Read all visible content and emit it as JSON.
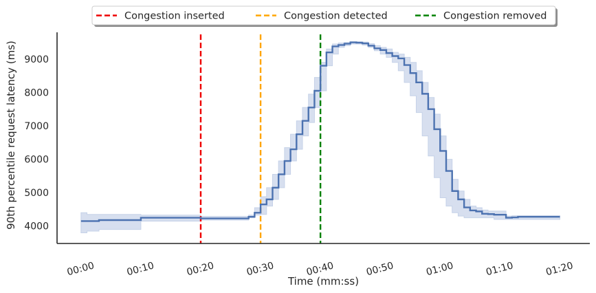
{
  "chart_data": {
    "type": "line",
    "xlabel": "Time (mm:ss)",
    "ylabel": "90th percentile request latency (ms)",
    "x_unit": "mm:ss",
    "x_ticks": [
      "00:00",
      "00:10",
      "00:20",
      "00:30",
      "00:40",
      "00:50",
      "01:00",
      "01:10",
      "01:20"
    ],
    "y_ticks": [
      4000,
      5000,
      6000,
      7000,
      8000,
      9000
    ],
    "xlim": [
      "-00:04",
      "01:25"
    ],
    "ylim": [
      3480,
      9800
    ],
    "grid": false,
    "legend_position": "top-center",
    "series": [
      {
        "color": "#4c72b0",
        "band_color": "#c6d2e8",
        "x": [
          "00:00",
          "00:01",
          "00:03",
          "00:10",
          "00:20",
          "00:28",
          "00:29",
          "00:30",
          "00:31",
          "00:32",
          "00:33",
          "00:34",
          "00:35",
          "00:36",
          "00:37",
          "00:38",
          "00:39",
          "00:40",
          "00:41",
          "00:42",
          "00:43",
          "00:44",
          "00:45",
          "00:46",
          "00:47",
          "00:48",
          "00:49",
          "00:50",
          "00:51",
          "00:52",
          "00:53",
          "00:54",
          "00:55",
          "00:56",
          "00:57",
          "00:58",
          "00:59",
          "01:00",
          "01:01",
          "01:02",
          "01:03",
          "01:04",
          "01:05",
          "01:06",
          "01:07",
          "01:08",
          "01:09",
          "01:10",
          "01:11",
          "01:12",
          "01:13",
          "01:20"
        ],
        "y": [
          4150,
          4150,
          4180,
          4250,
          4230,
          4280,
          4400,
          4650,
          4800,
          5150,
          5550,
          5950,
          6300,
          6750,
          7150,
          7550,
          8050,
          8800,
          9200,
          9380,
          9420,
          9460,
          9500,
          9490,
          9470,
          9400,
          9320,
          9270,
          9180,
          9090,
          9020,
          8820,
          8580,
          8300,
          7960,
          7500,
          6900,
          6250,
          5650,
          5050,
          4800,
          4560,
          4470,
          4440,
          4370,
          4360,
          4340,
          4340,
          4250,
          4260,
          4280,
          4280
        ],
        "lower": [
          3800,
          3850,
          3900,
          4150,
          4180,
          4250,
          4330,
          4350,
          4600,
          4800,
          5150,
          5550,
          5950,
          6300,
          6700,
          7100,
          7550,
          8050,
          8800,
          9150,
          9350,
          9400,
          9450,
          9450,
          9420,
          9350,
          9250,
          9150,
          9050,
          8900,
          8650,
          8300,
          7900,
          7400,
          6700,
          6100,
          5450,
          4850,
          4600,
          4400,
          4300,
          4250,
          4250,
          4250,
          4250,
          4250,
          4200,
          4200,
          4200,
          4200,
          4200,
          4200
        ],
        "upper": [
          4400,
          4350,
          4350,
          4330,
          4290,
          4330,
          4550,
          4880,
          5150,
          5550,
          5950,
          6350,
          6750,
          7150,
          7550,
          7950,
          8450,
          8900,
          9300,
          9450,
          9480,
          9500,
          9520,
          9520,
          9510,
          9460,
          9400,
          9350,
          9300,
          9200,
          9150,
          9050,
          8900,
          8650,
          8300,
          7850,
          7350,
          6700,
          6000,
          5400,
          5050,
          4800,
          4600,
          4550,
          4480,
          4450,
          4450,
          4450,
          4300,
          4310,
          4310,
          4310
        ]
      }
    ],
    "vlines": [
      {
        "x": "00:20",
        "label": "Congestion inserted",
        "color": "#ee0000"
      },
      {
        "x": "00:30",
        "label": "Congestion detected",
        "color": "#ffa500"
      },
      {
        "x": "00:40",
        "label": "Congestion removed",
        "color": "#008000"
      }
    ]
  }
}
